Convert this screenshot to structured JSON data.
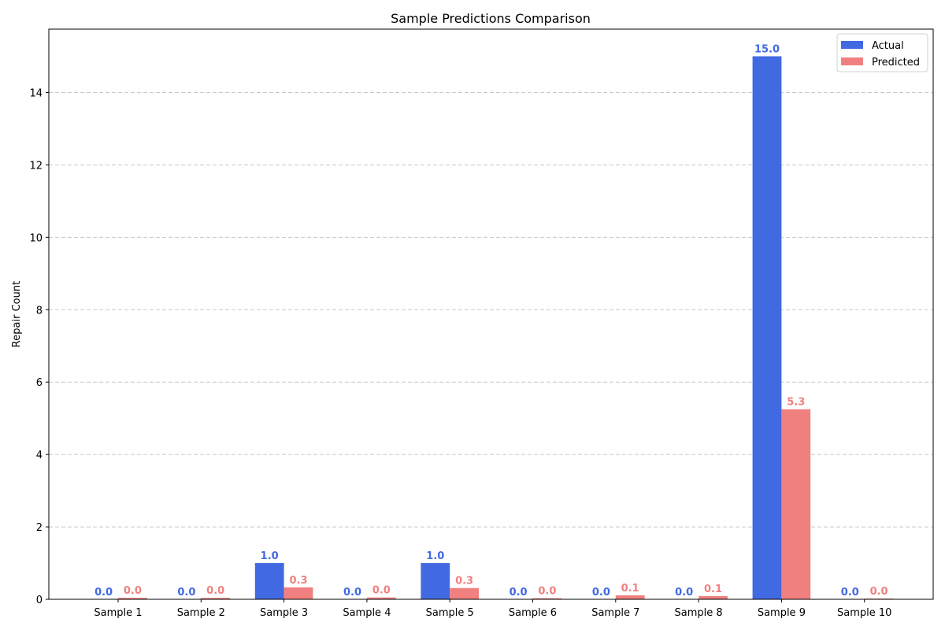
{
  "chart_data": {
    "type": "bar",
    "title": "Sample Predictions Comparison",
    "xlabel": "",
    "ylabel": "Repair Count",
    "categories": [
      "Sample 1",
      "Sample 2",
      "Sample 3",
      "Sample 4",
      "Sample 5",
      "Sample 6",
      "Sample 7",
      "Sample 8",
      "Sample 9",
      "Sample 10"
    ],
    "series": [
      {
        "name": "Actual",
        "color": "#4169e1",
        "values": [
          0,
          0,
          1,
          0,
          1,
          0,
          0,
          0,
          15,
          0
        ],
        "labels": [
          "0.0",
          "0.0",
          "1.0",
          "0.0",
          "1.0",
          "0.0",
          "0.0",
          "0.0",
          "15.0",
          "0.0"
        ]
      },
      {
        "name": "Predicted",
        "color": "#f08080",
        "values": [
          0.04,
          0.04,
          0.33,
          0.05,
          0.31,
          0.03,
          0.11,
          0.09,
          5.25,
          0.02
        ],
        "labels": [
          "0.0",
          "0.0",
          "0.3",
          "0.0",
          "0.3",
          "0.0",
          "0.1",
          "0.1",
          "5.3",
          "0.0"
        ]
      }
    ],
    "ylim": [
      0,
      15.75
    ],
    "yticks": [
      0,
      2,
      4,
      6,
      8,
      10,
      12,
      14
    ],
    "ytick_labels": [
      "0",
      "2",
      "4",
      "6",
      "8",
      "10",
      "12",
      "14"
    ],
    "grid": "y-dashed",
    "legend_position": "top-right"
  }
}
